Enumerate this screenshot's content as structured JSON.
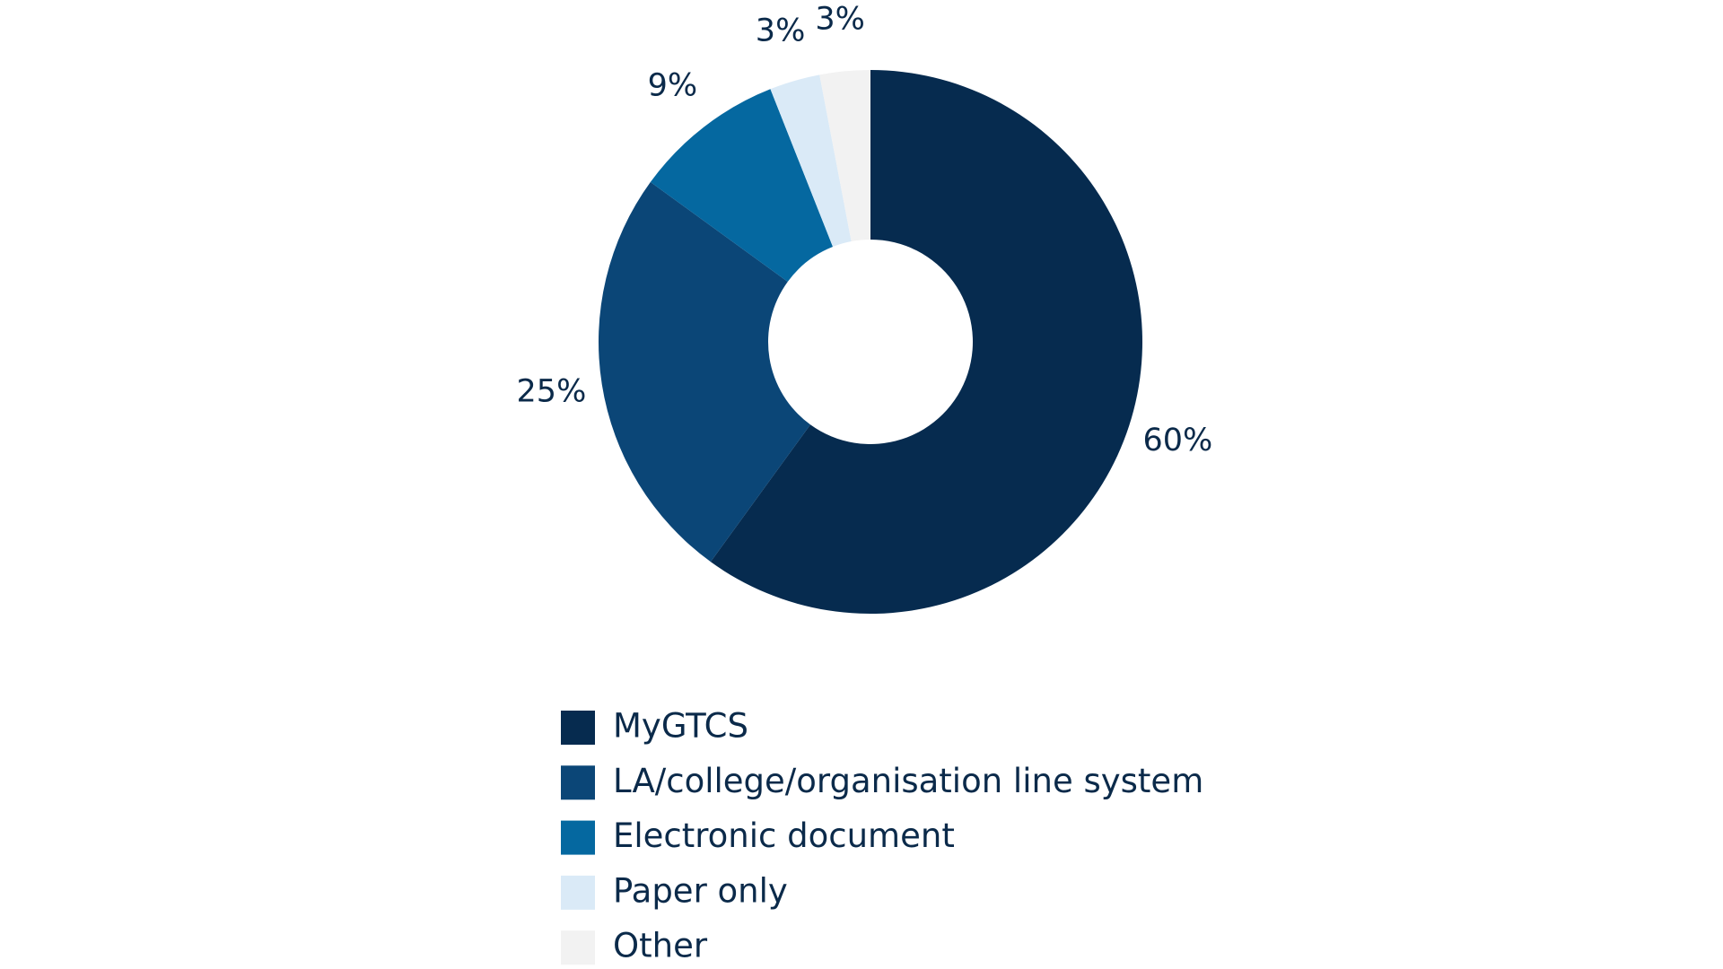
{
  "chart_data": {
    "type": "donut",
    "categories": [
      "MyGTCS",
      "LA/college/organisation line system",
      "Electronic document",
      "Paper only",
      "Other"
    ],
    "values": [
      60,
      25,
      9,
      3,
      3
    ],
    "value_labels": [
      "60%",
      "25%",
      "9%",
      "3%",
      "3%"
    ],
    "colors": [
      "#062b4f",
      "#0b4677",
      "#0568a0",
      "#daeaf7",
      "#f2f2f2"
    ],
    "legend": "bottom"
  }
}
